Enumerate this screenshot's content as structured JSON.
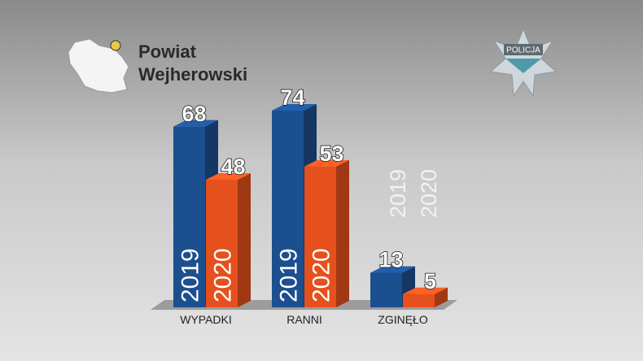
{
  "logo_text": "POLICJA",
  "chart_data": {
    "type": "bar",
    "title": "Powiat Wejherowski",
    "categories": [
      "WYPADKI",
      "RANNI",
      "ZGINĘŁO"
    ],
    "series": [
      {
        "name": "2019",
        "color": "#1c4f8f",
        "values": [
          68,
          74,
          13
        ]
      },
      {
        "name": "2020",
        "color": "#e5501d",
        "values": [
          48,
          53,
          5
        ]
      }
    ]
  }
}
